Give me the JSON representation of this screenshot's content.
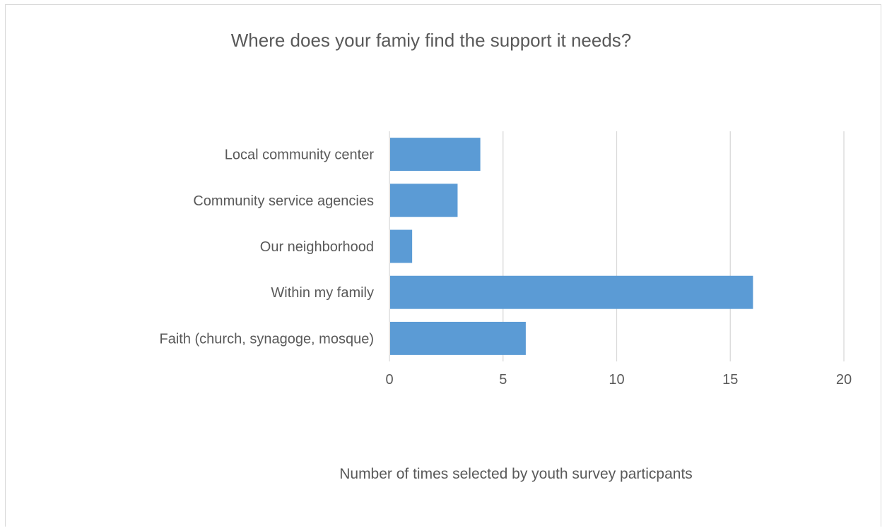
{
  "chart_data": {
    "type": "bar",
    "orientation": "horizontal",
    "title": "Where does your famiy find the support it needs?",
    "xlabel": "Number of times selected by youth survey particpants",
    "ylabel": "",
    "categories": [
      "Local community center",
      "Community service agencies",
      "Our neighborhood",
      "Within my family",
      "Faith (church, synagoge, mosque)"
    ],
    "values": [
      4,
      3,
      1,
      16,
      6
    ],
    "xlim": [
      0,
      20
    ],
    "xticks": [
      "0",
      "5",
      "10",
      "15",
      "20"
    ],
    "grid": "vertical",
    "legend": "none",
    "bar_color": "#5b9bd5",
    "gridline_color": "#d9d9d9"
  }
}
